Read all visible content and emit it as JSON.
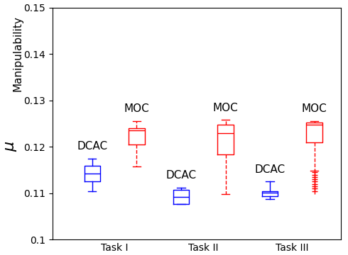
{
  "chart_data": {
    "type": "box",
    "categories": [
      "Task I",
      "Task II",
      "Task III"
    ],
    "ylabel": "μ",
    "annotation": "Manipulability",
    "series": [
      {
        "name": "DCAC",
        "color": "#0000ff",
        "line_style": "solid",
        "marker": "+",
        "stats": [
          {
            "whislo": 0.1105,
            "q1": 0.1125,
            "med": 0.1143,
            "q3": 0.116,
            "whishi": 0.1175,
            "fliers": []
          },
          {
            "whislo": 0.1077,
            "q1": 0.1077,
            "med": 0.1092,
            "q3": 0.1108,
            "whishi": 0.1112,
            "fliers": []
          },
          {
            "whislo": 0.1088,
            "q1": 0.1093,
            "med": 0.1101,
            "q3": 0.1105,
            "whishi": 0.1125,
            "fliers": []
          }
        ]
      },
      {
        "name": "MOC",
        "color": "#ff0000",
        "line_style": "dashed",
        "marker": "+",
        "stats": [
          {
            "whislo": 0.1158,
            "q1": 0.1205,
            "med": 0.1235,
            "q3": 0.124,
            "whishi": 0.1255,
            "fliers": []
          },
          {
            "whislo": 0.1098,
            "q1": 0.1183,
            "med": 0.123,
            "q3": 0.1248,
            "whishi": 0.1258,
            "fliers": []
          },
          {
            "whislo": 0.1148,
            "q1": 0.121,
            "med": 0.1248,
            "q3": 0.1252,
            "whishi": 0.1255,
            "fliers": [
              0.1145,
              0.114,
              0.1135,
              0.113,
              0.1125,
              0.112,
              0.1115,
              0.111,
              0.1105
            ]
          }
        ]
      }
    ],
    "ylim": [
      0.1,
      0.15
    ],
    "yticks": [
      0.1,
      0.11,
      0.12,
      0.13,
      0.14,
      0.15
    ]
  }
}
